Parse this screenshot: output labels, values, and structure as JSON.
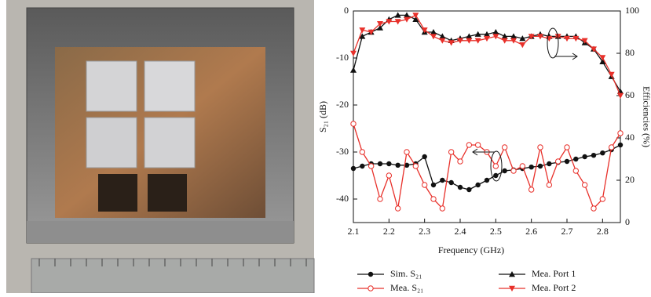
{
  "chart_data": {
    "type": "line",
    "x_label": "Frequency (GHz)",
    "y_label": "S₂₁ (dB)",
    "y2_label": "Efficiencies (%)",
    "x": [
      2.1,
      2.125,
      2.15,
      2.175,
      2.2,
      2.225,
      2.25,
      2.275,
      2.3,
      2.325,
      2.35,
      2.375,
      2.4,
      2.425,
      2.45,
      2.475,
      2.5,
      2.525,
      2.55,
      2.575,
      2.6,
      2.625,
      2.65,
      2.675,
      2.7,
      2.725,
      2.75,
      2.775,
      2.8,
      2.825,
      2.85
    ],
    "xlim": [
      2.1,
      2.85
    ],
    "xticks": [
      2.1,
      2.2,
      2.3,
      2.4,
      2.5,
      2.6,
      2.7,
      2.8
    ],
    "ylim": [
      -45,
      0
    ],
    "yticks": [
      0,
      -10,
      -20,
      -30,
      -40
    ],
    "y2lim": [
      0,
      100
    ],
    "y2ticks": [
      0,
      20,
      40,
      60,
      80,
      100
    ],
    "series": [
      {
        "name": "Sim. S₂₁",
        "color": "#111111",
        "marker": "circle",
        "axis": "y",
        "values": [
          -33.5,
          -33,
          -32.5,
          -32.5,
          -32.5,
          -32.8,
          -32.8,
          -32.5,
          -31,
          -37,
          -36,
          -36.5,
          -37.5,
          -38,
          -37,
          -36,
          -35,
          -34,
          -33.8,
          -33.5,
          -33.2,
          -33,
          -32.5,
          -32.2,
          -32,
          -31.5,
          -31,
          -30.7,
          -30.2,
          -29.5,
          -28.5
        ]
      },
      {
        "name": "Mea. S₂₁",
        "color": "#e8302a",
        "marker": "open-circle",
        "axis": "y",
        "values": [
          -24,
          -30,
          -33,
          -40,
          -35,
          -42,
          -30,
          -33,
          -37,
          -40,
          -42,
          -30,
          -32,
          -28.5,
          -28.5,
          -30,
          -33,
          -29,
          -34,
          -33,
          -38,
          -29,
          -37,
          -32,
          -29,
          -34,
          -37,
          -42,
          -40,
          -29,
          -26
        ]
      },
      {
        "name": "Mea. Port 1",
        "color": "#111111",
        "marker": "triangle-up",
        "axis": "y2",
        "values": [
          72,
          88,
          90,
          92,
          96,
          98,
          98,
          96,
          90,
          90,
          88,
          86,
          87,
          88,
          89,
          89,
          90,
          88,
          88,
          87,
          88,
          89,
          88,
          88,
          88,
          88,
          85,
          82,
          76,
          69,
          62
        ]
      },
      {
        "name": "Mea. Port 2",
        "color": "#e8302a",
        "marker": "triangle-down",
        "axis": "y2",
        "values": [
          80,
          91,
          90,
          94,
          95,
          95,
          96,
          98,
          91,
          88,
          86,
          85,
          86,
          86,
          86,
          87,
          88,
          86,
          86,
          84,
          88,
          88,
          87,
          88,
          87,
          87,
          86,
          82,
          78,
          70,
          60
        ]
      }
    ]
  }
}
